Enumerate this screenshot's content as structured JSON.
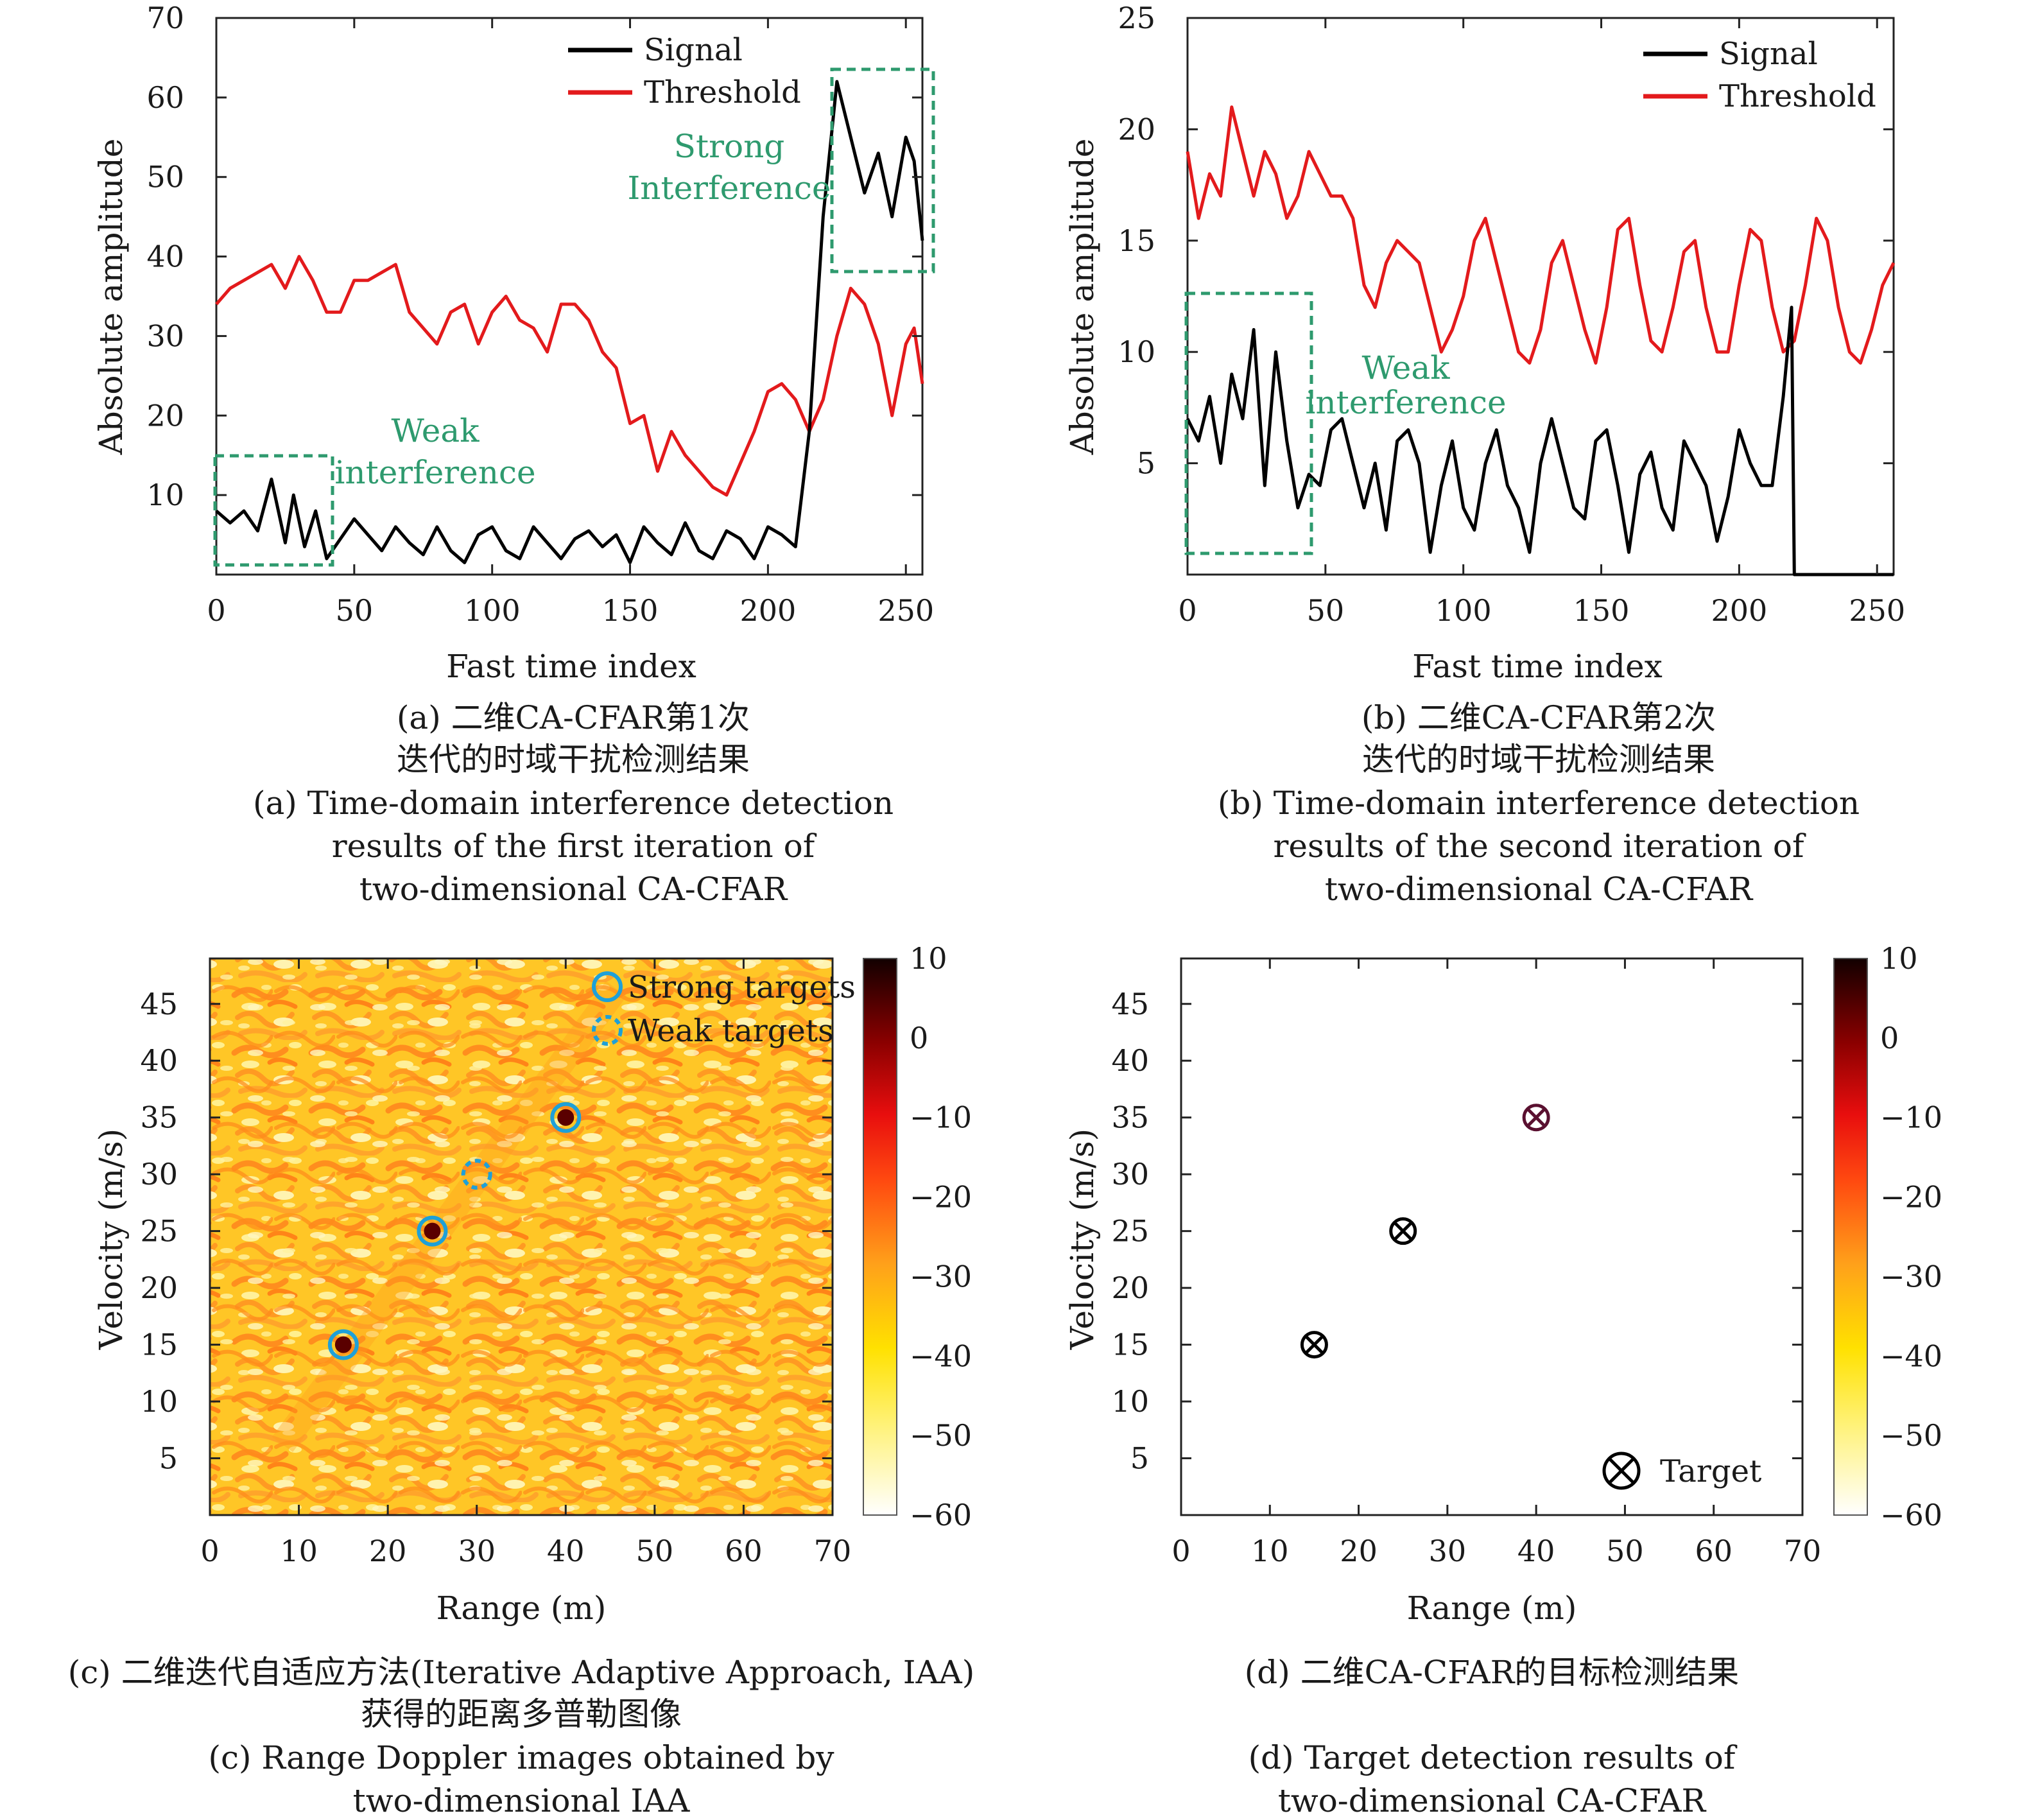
{
  "chart_data": [
    {
      "id": "a",
      "type": "line",
      "xlabel": "Fast time index",
      "ylabel": "Absolute amplitude",
      "xlim": [
        0,
        256
      ],
      "ylim": [
        0,
        70
      ],
      "xticks": [
        0,
        50,
        100,
        150,
        200,
        250
      ],
      "yticks": [
        10,
        20,
        30,
        40,
        50,
        60,
        70
      ],
      "series": [
        {
          "name": "Signal",
          "color": "#000000",
          "x": [
            0,
            5,
            10,
            15,
            20,
            25,
            28,
            32,
            36,
            40,
            44,
            50,
            55,
            60,
            65,
            70,
            75,
            80,
            85,
            90,
            95,
            100,
            105,
            110,
            115,
            120,
            125,
            130,
            135,
            140,
            145,
            150,
            155,
            160,
            165,
            170,
            175,
            180,
            185,
            190,
            195,
            200,
            205,
            210,
            215,
            220,
            225,
            230,
            235,
            240,
            245,
            250,
            253,
            256
          ],
          "y": [
            8,
            6.5,
            8,
            5.5,
            12,
            4,
            10,
            3.5,
            8,
            2,
            4,
            7,
            5,
            3,
            6,
            4,
            2.5,
            6,
            3,
            1.5,
            5,
            6,
            3,
            2,
            6,
            4,
            2,
            4.5,
            5.5,
            3.5,
            5,
            1.5,
            6,
            4,
            2.5,
            6.5,
            3,
            2,
            5.5,
            4.5,
            2,
            6,
            5,
            3.5,
            18,
            45,
            62,
            55,
            48,
            53,
            45,
            55,
            52,
            42
          ]
        },
        {
          "name": "Threshold",
          "color": "#e31a1c",
          "x": [
            0,
            5,
            10,
            15,
            20,
            25,
            30,
            35,
            40,
            45,
            50,
            55,
            60,
            65,
            70,
            75,
            80,
            85,
            90,
            95,
            100,
            105,
            110,
            115,
            120,
            125,
            130,
            135,
            140,
            145,
            150,
            155,
            160,
            165,
            170,
            175,
            180,
            185,
            190,
            195,
            200,
            205,
            210,
            215,
            220,
            225,
            230,
            235,
            240,
            245,
            250,
            253,
            256
          ],
          "y": [
            34,
            36,
            37,
            38,
            39,
            36,
            40,
            37,
            33,
            33,
            37,
            37,
            38,
            39,
            33,
            31,
            29,
            33,
            34,
            29,
            33,
            35,
            32,
            31,
            28,
            34,
            34,
            32,
            28,
            26,
            19,
            20,
            13,
            18,
            15,
            13,
            11,
            10,
            14,
            18,
            23,
            24,
            22,
            18,
            22,
            30,
            36,
            34,
            29,
            20,
            29,
            31,
            24
          ]
        }
      ],
      "annotations": [
        "Strong",
        "Interference",
        "Weak",
        "interference"
      ]
    },
    {
      "id": "b",
      "type": "line",
      "xlabel": "Fast time index",
      "ylabel": "Absolute amplitude",
      "xlim": [
        0,
        256
      ],
      "ylim": [
        0,
        25
      ],
      "xticks": [
        0,
        50,
        100,
        150,
        200,
        250
      ],
      "yticks": [
        5,
        10,
        15,
        20,
        25
      ],
      "series": [
        {
          "name": "Signal",
          "color": "#000000",
          "x": [
            0,
            4,
            8,
            12,
            16,
            20,
            24,
            28,
            32,
            36,
            40,
            44,
            48,
            52,
            56,
            60,
            64,
            68,
            72,
            76,
            80,
            84,
            88,
            92,
            96,
            100,
            104,
            108,
            112,
            116,
            120,
            124,
            128,
            132,
            136,
            140,
            144,
            148,
            152,
            156,
            160,
            164,
            168,
            172,
            176,
            180,
            184,
            188,
            192,
            196,
            200,
            204,
            208,
            212,
            216,
            219,
            220,
            222,
            256
          ],
          "y": [
            7,
            6,
            8,
            5,
            9,
            7,
            11,
            4,
            10,
            6,
            3,
            4.5,
            4,
            6.5,
            7,
            5,
            3,
            5,
            2,
            6,
            6.5,
            5,
            1,
            4,
            6,
            3,
            2,
            5,
            6.5,
            4,
            3,
            1,
            5,
            7,
            5,
            3,
            2.5,
            6,
            6.5,
            4,
            1,
            4.5,
            5.5,
            3,
            2,
            6,
            5,
            4,
            1.5,
            3.5,
            6.5,
            5,
            4,
            4,
            8,
            12,
            0,
            0,
            0
          ]
        },
        {
          "name": "Threshold",
          "color": "#e31a1c",
          "x": [
            0,
            4,
            8,
            12,
            16,
            20,
            24,
            28,
            32,
            36,
            40,
            44,
            48,
            52,
            56,
            60,
            64,
            68,
            72,
            76,
            80,
            84,
            88,
            92,
            96,
            100,
            104,
            108,
            112,
            116,
            120,
            124,
            128,
            132,
            136,
            140,
            144,
            148,
            152,
            156,
            160,
            164,
            168,
            172,
            176,
            180,
            184,
            188,
            192,
            196,
            200,
            204,
            208,
            212,
            216,
            220,
            224,
            228,
            232,
            236,
            240,
            244,
            248,
            252,
            256
          ],
          "y": [
            19,
            16,
            18,
            17,
            21,
            19,
            17,
            19,
            18,
            16,
            17,
            19,
            18,
            17,
            17,
            16,
            13,
            12,
            14,
            15,
            14.5,
            14,
            12,
            10,
            11,
            12.5,
            15,
            16,
            14,
            12,
            10,
            9.5,
            11,
            14,
            15,
            13,
            11,
            9.5,
            12,
            15.5,
            16,
            13,
            10.5,
            10,
            12,
            14.5,
            15,
            12,
            10,
            10,
            13,
            15.5,
            15,
            12,
            10,
            10.5,
            13,
            16,
            15,
            12,
            10,
            9.5,
            11,
            13,
            14
          ]
        }
      ],
      "annotations": [
        "Weak",
        "interference"
      ]
    },
    {
      "id": "c",
      "type": "heatmap",
      "xlabel": "Range (m)",
      "ylabel": "Velocity (m/s)",
      "xlim": [
        0,
        70
      ],
      "ylim": [
        0,
        49
      ],
      "xticks": [
        0,
        10,
        20,
        30,
        40,
        50,
        60,
        70
      ],
      "yticks": [
        5,
        10,
        15,
        20,
        25,
        30,
        35,
        40,
        45
      ],
      "colorbar": {
        "min": -60,
        "max": 10,
        "ticks": [
          10,
          0,
          -10,
          -20,
          -30,
          -40,
          -50,
          -60
        ]
      },
      "strong_targets": [
        {
          "x": 15,
          "y": 15
        },
        {
          "x": 25,
          "y": 25
        },
        {
          "x": 40,
          "y": 35
        }
      ],
      "weak_targets": [
        {
          "x": 30,
          "y": 30
        }
      ],
      "legend": [
        "Strong targets",
        "Weak targets"
      ]
    },
    {
      "id": "d",
      "type": "scatter",
      "xlabel": "Range (m)",
      "ylabel": "Velocity (m/s)",
      "xlim": [
        0,
        70
      ],
      "ylim": [
        0,
        49
      ],
      "xticks": [
        0,
        10,
        20,
        30,
        40,
        50,
        60,
        70
      ],
      "yticks": [
        5,
        10,
        15,
        20,
        25,
        30,
        35,
        40,
        45
      ],
      "colorbar": {
        "min": -60,
        "max": 10,
        "ticks": [
          10,
          0,
          -10,
          -20,
          -30,
          -40,
          -50,
          -60
        ]
      },
      "targets": [
        {
          "x": 15,
          "y": 15
        },
        {
          "x": 25,
          "y": 25
        },
        {
          "x": 40,
          "y": 35
        }
      ],
      "legend": [
        "Target"
      ]
    }
  ],
  "captions": {
    "a": [
      "(a) 二维CA-CFAR第1次",
      "迭代的时域干扰检测结果",
      "(a) Time-domain interference detection",
      "results of the first iteration of",
      "two-dimensional CA-CFAR"
    ],
    "b": [
      "(b) 二维CA-CFAR第2次",
      "迭代的时域干扰检测结果",
      "(b) Time-domain interference detection",
      "results of the second iteration of",
      "two-dimensional CA-CFAR"
    ],
    "c": [
      "(c) 二维迭代自适应方法(Iterative Adaptive Approach, IAA)",
      "获得的距离多普勒图像",
      "(c) Range Doppler images obtained by",
      "two-dimensional IAA"
    ],
    "d": [
      "(d) 二维CA-CFAR的目标检测结果",
      "(d) Target detection results of",
      "two-dimensional CA-CFAR"
    ]
  },
  "colors": {
    "signal": "#000000",
    "threshold": "#e31a1c",
    "annotation": "#2e9a6e",
    "target_circle": "#1ea0d8"
  }
}
